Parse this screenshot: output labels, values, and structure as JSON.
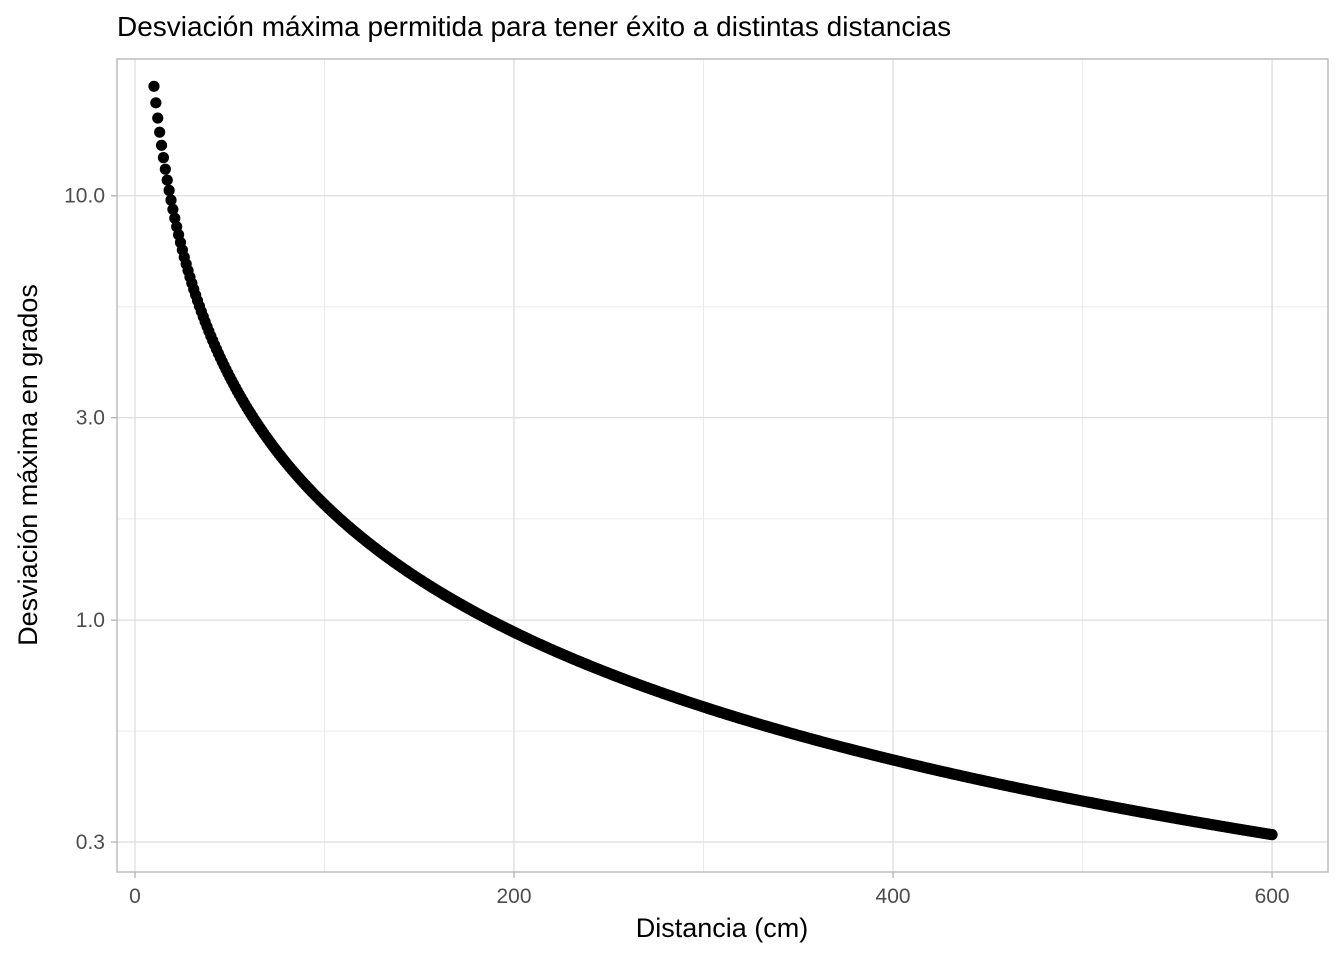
{
  "chart_data": {
    "type": "scatter",
    "title": "Desviación máxima permitida para tener éxito a distintas distancias",
    "xlabel": "Distancia (cm)",
    "ylabel": "Desviación máxima en grados",
    "x_scale": "linear",
    "y_scale": "log10",
    "xlim": [
      -9.5,
      629.5
    ],
    "ylim": [
      0.255,
      21.0
    ],
    "x_ticks": [
      0,
      200,
      400,
      600
    ],
    "x_tick_labels": [
      "0",
      "200",
      "400",
      "600"
    ],
    "y_ticks": [
      0.3,
      1.0,
      3.0,
      10.0
    ],
    "y_tick_labels": [
      "0.3",
      "1.0",
      "3.0",
      "10.0"
    ],
    "x_minor_ticks": [
      100,
      300,
      500
    ],
    "y_minor_ticks": [
      0.5477,
      1.7321,
      5.4772
    ],
    "grid": true,
    "legend": "none",
    "point_color": "#000000",
    "x_range": [
      10,
      600
    ],
    "x_step": 1,
    "curve": {
      "description_of_values": "y = 180/pi * atan(c / x)",
      "c": 3.27
    },
    "sample_points": [
      {
        "x": 10,
        "y": 18.1
      },
      {
        "x": 20,
        "y": 9.3
      },
      {
        "x": 50,
        "y": 3.74
      },
      {
        "x": 100,
        "y": 1.87
      },
      {
        "x": 200,
        "y": 0.94
      },
      {
        "x": 400,
        "y": 0.47
      },
      {
        "x": 600,
        "y": 0.31
      }
    ]
  }
}
